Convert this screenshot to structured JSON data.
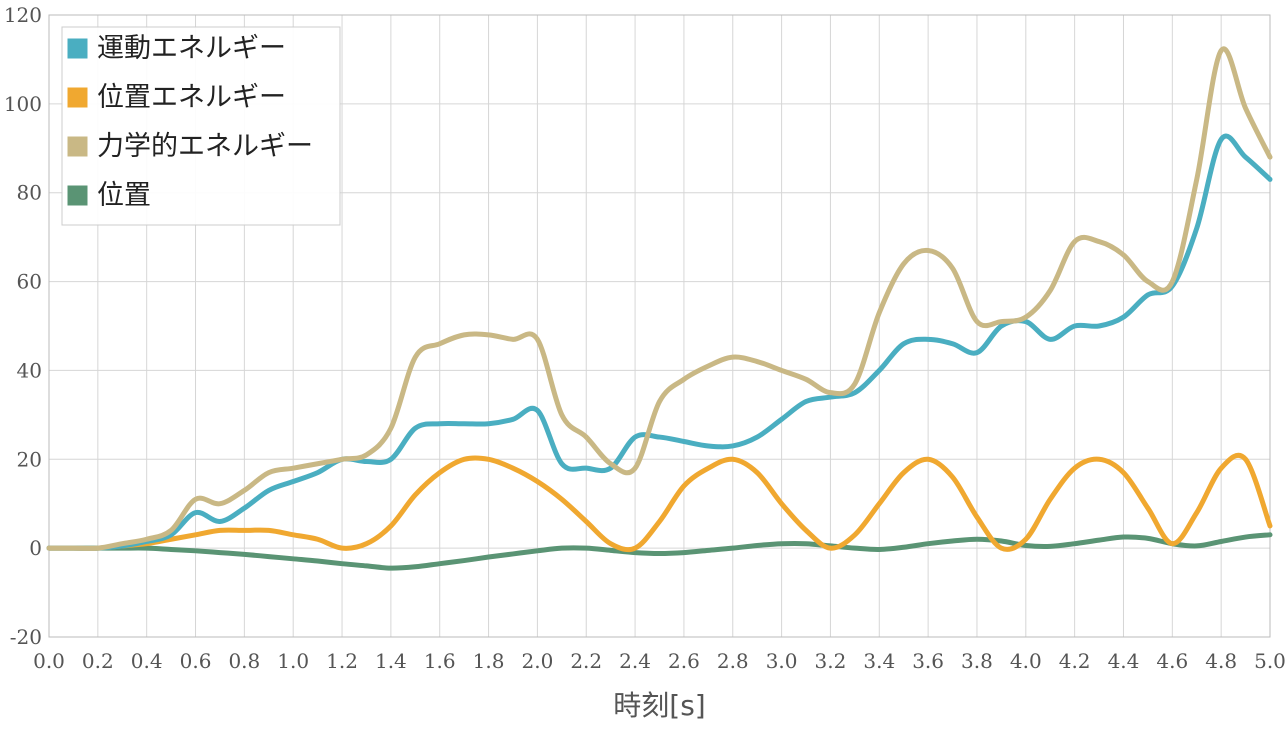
{
  "chart_data": {
    "type": "line",
    "title": "",
    "xlabel": "時刻[s]",
    "ylabel": "",
    "xlim": [
      0,
      5
    ],
    "ylim": [
      -20,
      120
    ],
    "x_ticks": [
      "0.0",
      "0.2",
      "0.4",
      "0.6",
      "0.8",
      "1.0",
      "1.2",
      "1.4",
      "1.6",
      "1.8",
      "2.0",
      "2.2",
      "2.4",
      "2.6",
      "2.8",
      "3.0",
      "3.2",
      "3.4",
      "3.6",
      "3.8",
      "4.0",
      "4.2",
      "4.4",
      "4.6",
      "4.8",
      "5.0"
    ],
    "y_ticks": [
      "-20",
      "0",
      "20",
      "40",
      "60",
      "80",
      "100",
      "120"
    ],
    "grid": true,
    "legend_position": "top-left",
    "x": [
      0.0,
      0.1,
      0.2,
      0.3,
      0.4,
      0.5,
      0.6,
      0.7,
      0.8,
      0.9,
      1.0,
      1.1,
      1.2,
      1.3,
      1.4,
      1.5,
      1.6,
      1.7,
      1.8,
      1.9,
      2.0,
      2.1,
      2.2,
      2.3,
      2.4,
      2.5,
      2.6,
      2.7,
      2.8,
      2.9,
      3.0,
      3.1,
      3.2,
      3.3,
      3.4,
      3.5,
      3.6,
      3.7,
      3.8,
      3.9,
      4.0,
      4.1,
      4.2,
      4.3,
      4.4,
      4.5,
      4.6,
      4.7,
      4.8,
      4.9,
      5.0
    ],
    "series": [
      {
        "name": "運動エネルギー",
        "color": "#4aaec1",
        "values": [
          0,
          0,
          0,
          0.5,
          1.5,
          3,
          8,
          6,
          9,
          13,
          15,
          17,
          20,
          19.5,
          20,
          27,
          28,
          28,
          28,
          29,
          31,
          19,
          18,
          18,
          25,
          25,
          24,
          23,
          23,
          25,
          29,
          33,
          34,
          35,
          40,
          46,
          47,
          46,
          44,
          50,
          51,
          47,
          50,
          50,
          52,
          57,
          59,
          72,
          92,
          88,
          83
        ]
      },
      {
        "name": "位置エネルギー",
        "color": "#f0a830",
        "values": [
          0,
          0,
          0,
          0.5,
          1,
          2,
          3,
          4,
          4,
          4,
          3,
          2,
          0,
          1,
          5,
          12,
          17,
          20,
          20,
          18,
          15,
          11,
          6,
          1,
          0,
          6,
          14,
          18,
          20,
          17,
          10,
          4,
          0,
          3,
          10,
          17,
          20,
          16,
          7,
          0,
          2,
          11,
          18,
          20,
          17,
          9,
          1,
          8,
          18,
          20,
          5
        ]
      },
      {
        "name": "力学的エネルギー",
        "color": "#c9b885",
        "values": [
          0,
          0,
          0,
          1,
          2,
          4,
          11,
          10,
          13,
          17,
          18,
          19,
          20,
          21,
          27,
          43,
          46,
          48,
          48,
          47,
          47,
          30,
          25,
          19,
          18,
          33,
          38,
          41,
          43,
          42,
          40,
          38,
          35,
          37,
          53,
          64,
          67,
          63,
          51,
          51,
          52,
          58,
          69,
          69,
          66,
          60,
          60,
          83,
          112,
          99,
          88
        ]
      },
      {
        "name": "位置",
        "color": "#5a9474",
        "values": [
          0,
          0,
          0,
          0,
          0,
          -0.3,
          -0.6,
          -1,
          -1.4,
          -1.9,
          -2.4,
          -2.9,
          -3.5,
          -4,
          -4.5,
          -4.2,
          -3.5,
          -2.8,
          -2,
          -1.3,
          -0.6,
          0,
          0,
          -0.5,
          -1,
          -1.2,
          -1,
          -0.5,
          0,
          0.6,
          1,
          1,
          0.5,
          0,
          -0.3,
          0.2,
          1,
          1.6,
          2,
          1.6,
          0.6,
          0.4,
          1,
          1.8,
          2.5,
          2.2,
          1,
          0.5,
          1.5,
          2.5,
          3
        ]
      }
    ]
  }
}
